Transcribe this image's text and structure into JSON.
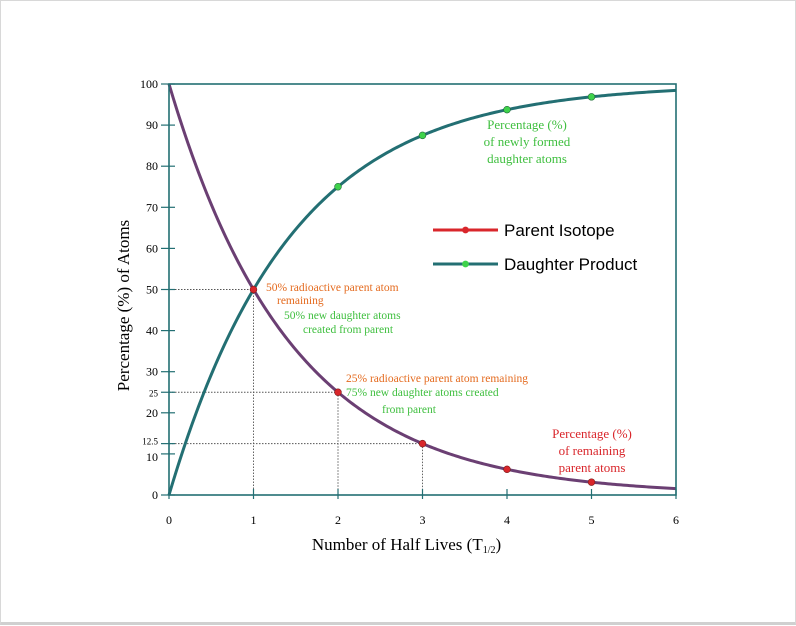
{
  "chart_data": {
    "type": "line",
    "xlabel": "Number of Half Lives (T",
    "xlabel_sub": "1/2",
    "xlabel_end": ")",
    "ylabel": "Percentage (%) of Atoms",
    "xlim": [
      0,
      6
    ],
    "ylim": [
      0,
      100
    ],
    "x_ticks": [
      "0",
      "1",
      "2",
      "3",
      "4",
      "5",
      "6"
    ],
    "y_ticks": [
      {
        "value": 0,
        "label": "0"
      },
      {
        "value": 10,
        "label": "10"
      },
      {
        "value": 12.5,
        "label": "12.5"
      },
      {
        "value": 20,
        "label": "20"
      },
      {
        "value": 25,
        "label": "25"
      },
      {
        "value": 30,
        "label": "30"
      },
      {
        "value": 40,
        "label": "40"
      },
      {
        "value": 50,
        "label": "50"
      },
      {
        "value": 60,
        "label": "60"
      },
      {
        "value": 70,
        "label": "70"
      },
      {
        "value": 80,
        "label": "80"
      },
      {
        "value": 90,
        "label": "90"
      },
      {
        "value": 100,
        "label": "100"
      }
    ],
    "series": [
      {
        "name": "Parent Isotope",
        "color": "#6b3f73",
        "marker_color": "#d9262b",
        "markers_x": [
          1,
          2,
          3,
          4,
          5
        ],
        "markers_y": [
          50,
          25,
          12.5,
          6.25,
          3.125
        ]
      },
      {
        "name": "Daughter Product",
        "color": "#236f73",
        "marker_color": "#3fd24b",
        "markers_x": [
          2,
          3,
          4,
          5
        ],
        "markers_y": [
          75,
          87.5,
          93.75,
          96.875
        ]
      }
    ],
    "legend_line_colors": {
      "parent": "#d9262b",
      "daughter": "#236f73"
    },
    "grid": false,
    "legend": "upper-right",
    "guide_points": [
      {
        "x": 1,
        "y": 50
      },
      {
        "x": 2,
        "y": 25
      },
      {
        "x": 3,
        "y": 12.5
      }
    ],
    "annotations": {
      "daughter_label": [
        "Percentage (%)",
        "of newly formed",
        "daughter atoms"
      ],
      "parent_label": [
        "Percentage (%)",
        "of remaining",
        "parent atoms"
      ],
      "half1_parent": [
        "50% radioactive parent atom",
        "remaining"
      ],
      "half1_daughter": [
        "50% new daughter atoms",
        "created from parent"
      ],
      "half2_parent": [
        "25% radioactive parent atom remaining"
      ],
      "half2_daughter": [
        "75% new daughter atoms created",
        "from parent"
      ]
    },
    "annotation_colors": {
      "orange": "#e46a1e",
      "green": "#3fbf3f",
      "red": "#d9262b"
    }
  }
}
